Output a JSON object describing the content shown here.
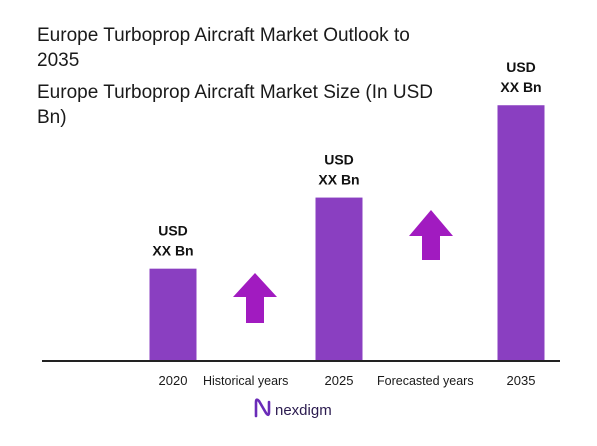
{
  "colors": {
    "bar": "#8a3fc1",
    "arrow": "#a11bc0",
    "axis": "#222222",
    "brand": "#6a2bb8"
  },
  "chart_data": {
    "type": "bar",
    "title_lines": [
      "Europe Turboprop Aircraft Market Outlook to",
      "2035"
    ],
    "subtitle_lines": [
      "Europe Turboprop Aircraft Market Size (In USD",
      "Bn)"
    ],
    "categories": [
      "2020",
      "2025",
      "2035"
    ],
    "values": [
      1.0,
      1.77,
      2.77
    ],
    "ylim": [
      0,
      3
    ],
    "data_labels": [
      [
        "USD",
        "XX Bn"
      ],
      [
        "USD",
        "XX Bn"
      ],
      [
        "USD",
        "XX Bn"
      ]
    ],
    "period_labels": [
      "Historical years",
      "Forecasted years"
    ],
    "legend": "none",
    "grid": false
  },
  "brand": {
    "name": "nexdigm",
    "icon": "nexdigm-logo-icon"
  }
}
